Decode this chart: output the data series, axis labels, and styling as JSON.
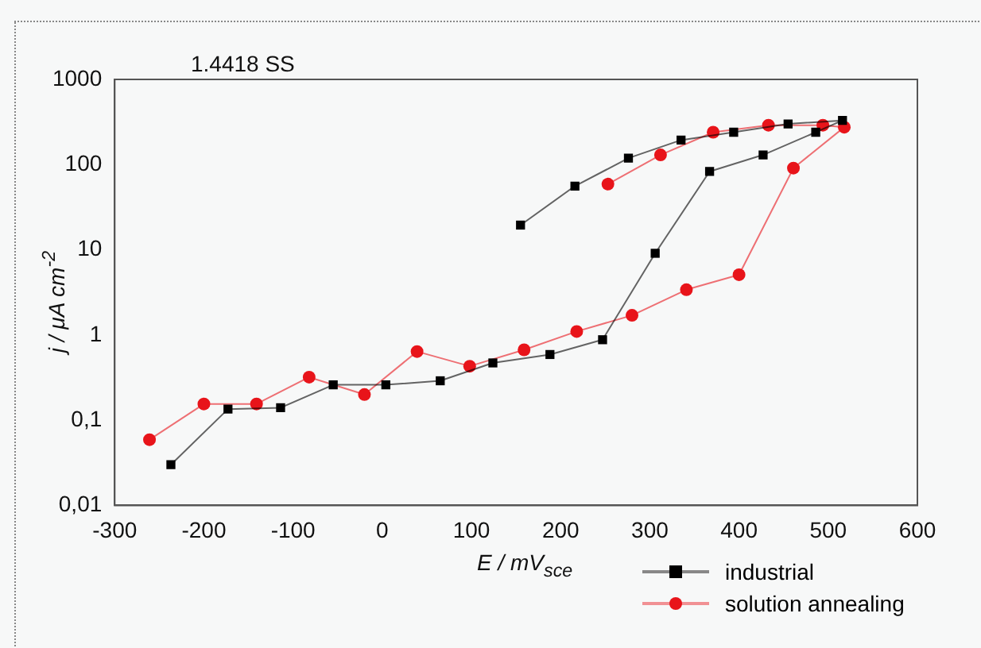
{
  "chart_data": {
    "type": "line",
    "title": "1.4418 SS",
    "xlabel": "E / mV$_{sce}$",
    "ylabel": "j / μA cm$^{-2}$",
    "log": "y",
    "xlim": [
      -300,
      600
    ],
    "xticks": [
      -300,
      -200,
      -100,
      0,
      100,
      200,
      300,
      400,
      500,
      600
    ],
    "ylim": [
      0.01,
      1000
    ],
    "yticks": [
      {
        "value": 0.01,
        "label": "0,01"
      },
      {
        "value": 0.1,
        "label": "0,1"
      },
      1,
      10,
      100,
      1000
    ],
    "grid": false,
    "legend": "bottom right",
    "line_style": "solid",
    "series": [
      {
        "name": "industrial",
        "color": "#000000",
        "marker": "square",
        "x": [
          -237,
          -173,
          -114,
          -55,
          4,
          65,
          124,
          188,
          247,
          306,
          367,
          427,
          486,
          516,
          455,
          394,
          335,
          276,
          216,
          155
        ],
        "values": [
          0.03,
          0.135,
          0.14,
          0.26,
          0.26,
          0.29,
          0.47,
          0.59,
          0.88,
          9.1,
          83,
          130,
          240,
          330,
          300,
          240,
          194,
          119,
          56,
          19.5
        ]
      },
      {
        "name": "solution annealing",
        "color": "#e8141a",
        "marker": "circle",
        "x": [
          -261,
          -200,
          -141,
          -82,
          -20,
          39,
          98,
          159,
          218,
          280,
          341,
          400,
          461,
          518,
          494,
          433,
          371,
          312,
          253
        ],
        "values": [
          0.059,
          0.155,
          0.155,
          0.32,
          0.2,
          0.64,
          0.43,
          0.67,
          1.1,
          1.7,
          3.4,
          5.1,
          91,
          275,
          290,
          290,
          240,
          130,
          59
        ]
      }
    ]
  }
}
